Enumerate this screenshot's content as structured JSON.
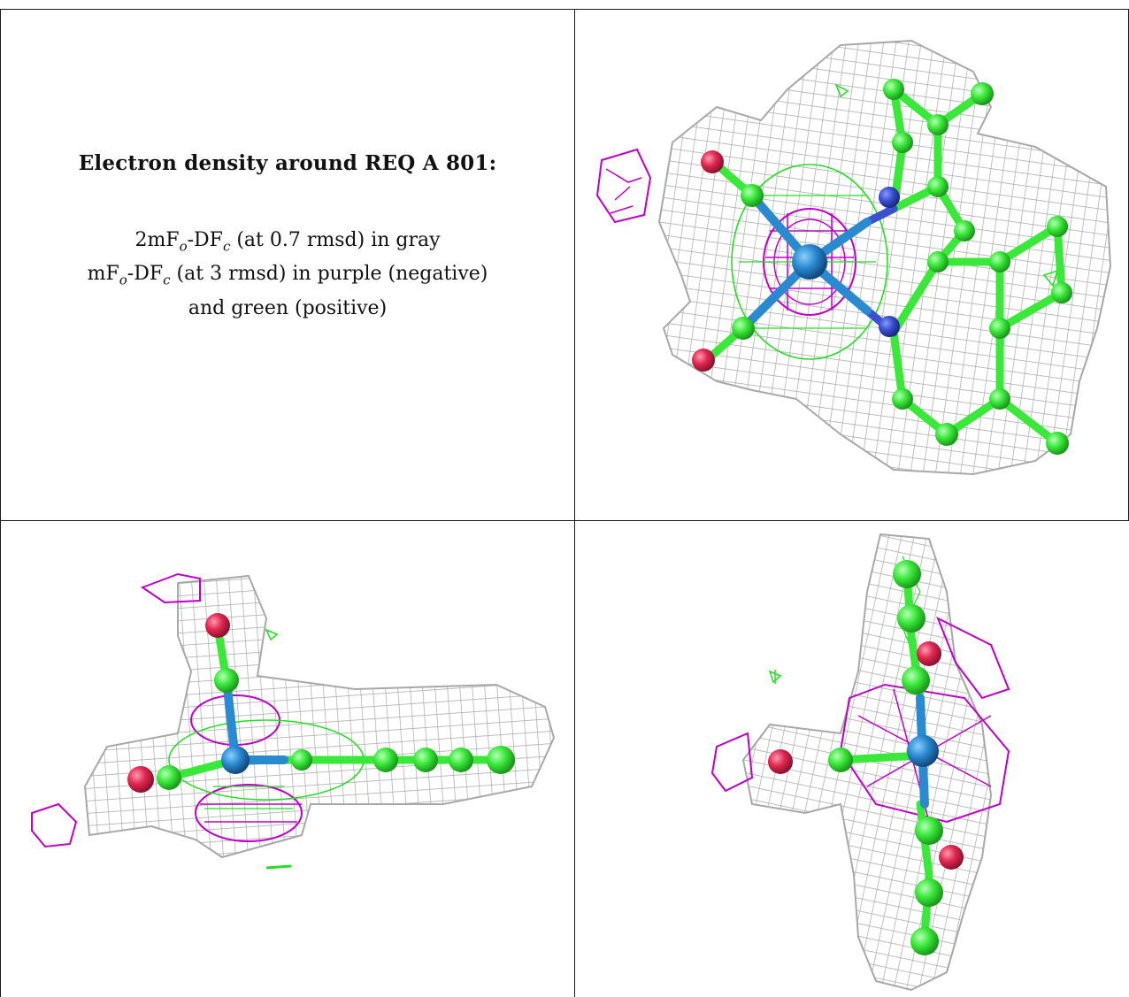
{
  "caption": {
    "title": "Electron density around REQ A 801:",
    "line1_parts": [
      "2mF",
      "o",
      "-DF",
      "c",
      " (at 0.7 rmsd) in gray"
    ],
    "line2_parts": [
      "mF",
      "o",
      "-DF",
      "c",
      " (at 3 rmsd) in purple (negative)"
    ],
    "line3": "and green (positive)"
  },
  "colors": {
    "gray_mesh": "#a8a8a8",
    "negative_mesh": "#c000c8",
    "positive_mesh": "#22e022",
    "carbon": "#3ae83a",
    "nitrogen": "#3a50d0",
    "oxygen": "#e02850",
    "metal": "#2a8ad0"
  },
  "panels": [
    {
      "name": "top-right-view",
      "description_icon": "molecule-face-on-view"
    },
    {
      "name": "bottom-left-view",
      "description_icon": "molecule-edge-on-view"
    },
    {
      "name": "bottom-right-view",
      "description_icon": "molecule-side-view"
    }
  ]
}
